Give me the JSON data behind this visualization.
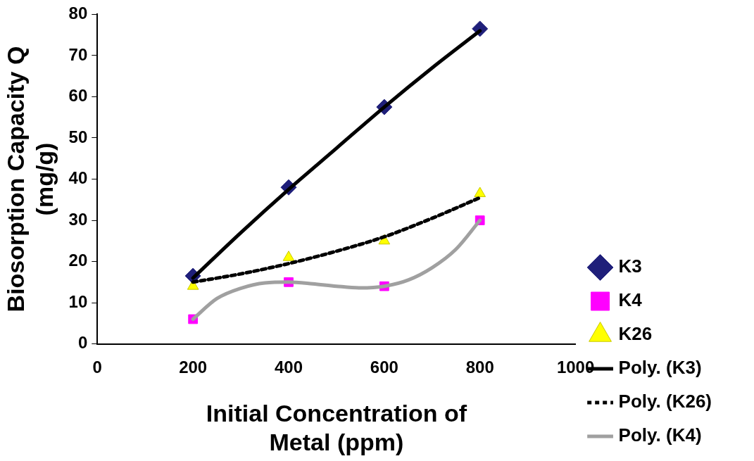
{
  "chart_data": {
    "type": "scatter",
    "xlabel": "Initial Concentration of Metal (ppm)",
    "ylabel": "Biosorption Capacity Q (mg/g)",
    "x": [
      200,
      400,
      600,
      800
    ],
    "series": [
      {
        "name": "K3",
        "color": "#1f1f7a",
        "marker": "diamond",
        "values": [
          16.5,
          38,
          57.5,
          76.5
        ]
      },
      {
        "name": "K4",
        "color": "#ff00ff",
        "marker": "square",
        "values": [
          6,
          15,
          14,
          30
        ]
      },
      {
        "name": "K26",
        "color": "#ffff00",
        "marker": "triangle",
        "values": [
          14,
          21,
          25,
          36.5
        ]
      },
      {
        "name": "Poly. (K3)",
        "type": "line",
        "color": "#000000",
        "line_style": "solid",
        "x": [
          200,
          300,
          400,
          500,
          600,
          700,
          800
        ],
        "values": [
          16,
          27,
          37.5,
          47.5,
          57.5,
          67,
          76
        ]
      },
      {
        "name": "Poly. (K26)",
        "type": "line",
        "color": "#000000",
        "line_style": "dashed",
        "x": [
          200,
          300,
          400,
          500,
          600,
          700,
          800
        ],
        "values": [
          15,
          17,
          19.5,
          22.5,
          26,
          30.5,
          35.5
        ]
      },
      {
        "name": "Poly. (K4)",
        "type": "line",
        "color": "#a0a0a0",
        "line_style": "solid",
        "x": [
          200,
          250,
          300,
          350,
          400,
          450,
          500,
          550,
          600,
          650,
          700,
          750,
          800
        ],
        "values": [
          6,
          11,
          13.5,
          14.8,
          15,
          14.6,
          14,
          13.6,
          14,
          15.5,
          18.5,
          23,
          30
        ]
      }
    ],
    "xlim": [
      0,
      1000
    ],
    "xticks": [
      0,
      200,
      400,
      600,
      800,
      1000
    ],
    "ylim": [
      0,
      80
    ],
    "yticks": [
      0,
      10,
      20,
      30,
      40,
      50,
      60,
      70,
      80
    ],
    "grid": false,
    "legend": "right"
  }
}
